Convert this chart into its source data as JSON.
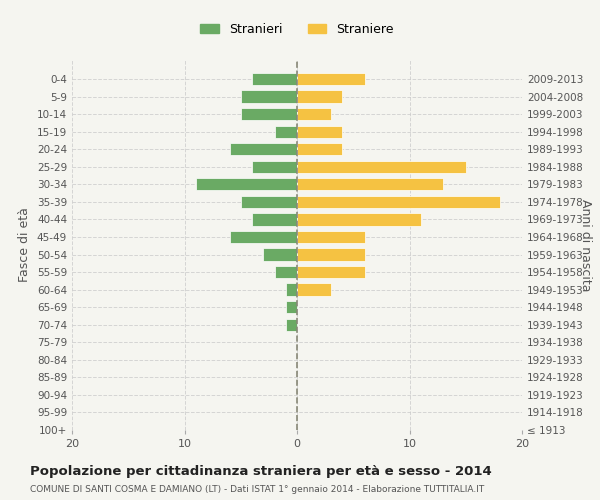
{
  "age_groups": [
    "100+",
    "95-99",
    "90-94",
    "85-89",
    "80-84",
    "75-79",
    "70-74",
    "65-69",
    "60-64",
    "55-59",
    "50-54",
    "45-49",
    "40-44",
    "35-39",
    "30-34",
    "25-29",
    "20-24",
    "15-19",
    "10-14",
    "5-9",
    "0-4"
  ],
  "birth_years": [
    "≤ 1913",
    "1914-1918",
    "1919-1923",
    "1924-1928",
    "1929-1933",
    "1934-1938",
    "1939-1943",
    "1944-1948",
    "1949-1953",
    "1954-1958",
    "1959-1963",
    "1964-1968",
    "1969-1973",
    "1974-1978",
    "1979-1983",
    "1984-1988",
    "1989-1993",
    "1994-1998",
    "1999-2003",
    "2004-2008",
    "2009-2013"
  ],
  "males": [
    0,
    0,
    0,
    0,
    0,
    0,
    1,
    1,
    1,
    2,
    3,
    6,
    4,
    5,
    9,
    4,
    6,
    2,
    5,
    5,
    4
  ],
  "females": [
    0,
    0,
    0,
    0,
    0,
    0,
    0,
    0,
    3,
    6,
    6,
    6,
    11,
    18,
    13,
    15,
    4,
    4,
    3,
    4,
    6
  ],
  "male_color": "#6aaa64",
  "female_color": "#f5c242",
  "male_label": "Stranieri",
  "female_label": "Straniere",
  "title": "Popolazione per cittadinanza straniera per età e sesso - 2014",
  "subtitle": "COMUNE DI SANTI COSMA E DAMIANO (LT) - Dati ISTAT 1° gennaio 2014 - Elaborazione TUTTITALIA.IT",
  "ylabel_left": "Fasce di età",
  "ylabel_right": "Anni di nascita",
  "xlim": [
    -20,
    20
  ],
  "xticks": [
    -20,
    -10,
    0,
    10,
    20
  ],
  "xticklabels": [
    "20",
    "10",
    "0",
    "10",
    "20"
  ],
  "background_color": "#f5f5f0",
  "grid_color": "#cccccc",
  "bar_edge_color": "white"
}
